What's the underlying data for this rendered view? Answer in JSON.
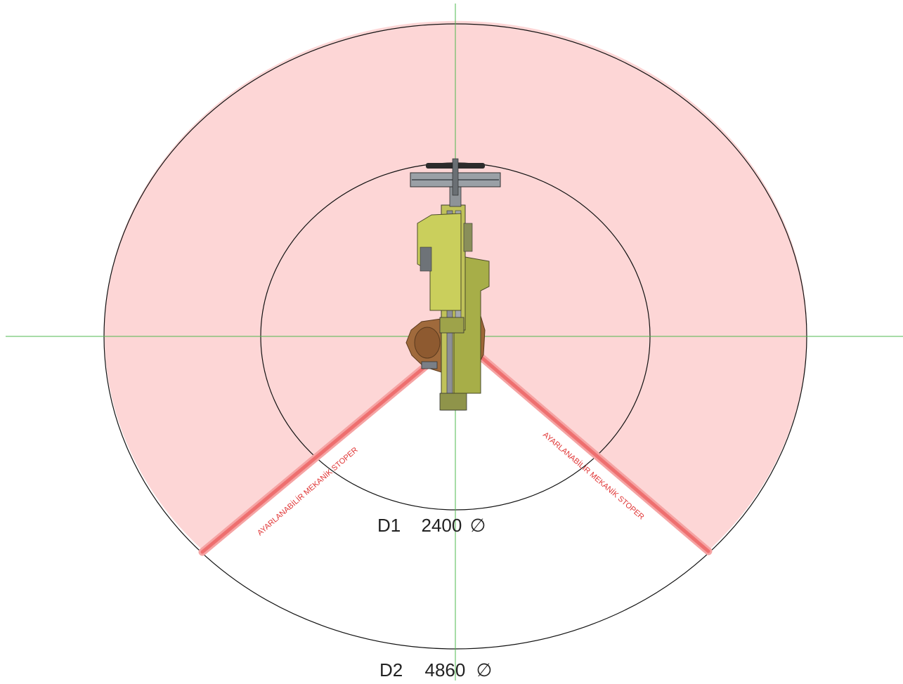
{
  "colors": {
    "work_zone_fill": "#fdd6d6",
    "stopper": "#f07272",
    "stopper_edge": "#e85a5a",
    "axis": "#4fb84f",
    "outline": "#111111",
    "robot_yellow": "#c9cf5a",
    "robot_olive": "#a9b04a",
    "robot_brown": "#a06a3c",
    "robot_gray": "#8a9097",
    "label_red": "#e03434"
  },
  "labels": {
    "inner_diameter": {
      "name": "D1",
      "value": "2400",
      "symbol": "∅"
    },
    "outer_diameter": {
      "name": "D2",
      "value": "4860",
      "symbol": "∅"
    },
    "stopper_left": "AYARLANABİLİR MEKANİK STOPER",
    "stopper_right": "AYARLANABİLİR MEKANİK STOPER"
  },
  "icons": {
    "robot": "scara-robot-top-view-icon",
    "diameter": "diameter-symbol"
  }
}
